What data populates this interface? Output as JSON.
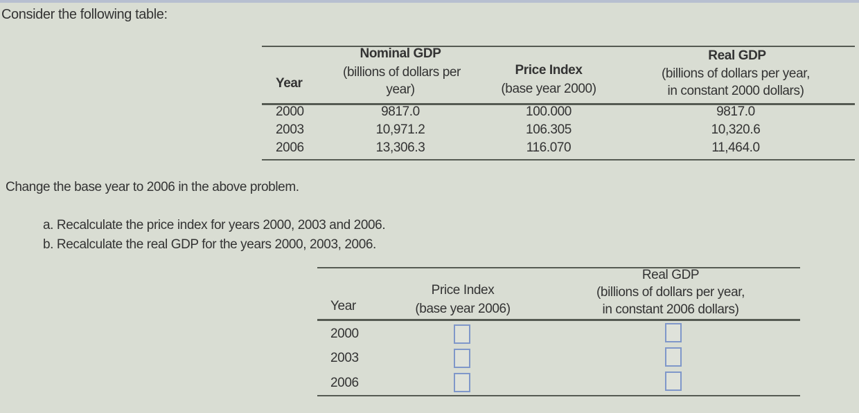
{
  "intro": "Consider the following table:",
  "table1": {
    "headers": {
      "year": "Year",
      "nominal": [
        "Nominal GDP",
        "(billions of dollars per",
        "year)"
      ],
      "price": [
        "Price Index",
        "(base year 2000)"
      ],
      "real": [
        "Real GDP",
        "(billions of dollars per year,",
        "in constant 2000 dollars)"
      ]
    },
    "rows": [
      {
        "year": "2000",
        "nominal": "9817.0",
        "price": "100.000",
        "real": "9817.0"
      },
      {
        "year": "2003",
        "nominal": "10,971.2",
        "price": "106.305",
        "real": "10,320.6"
      },
      {
        "year": "2006",
        "nominal": "13,306.3",
        "price": "116.070",
        "real": "11,464.0"
      }
    ]
  },
  "instruction": "Change the base year to 2006 in the above problem.",
  "parts": [
    "a. Recalculate the price index for years 2000, 2003 and 2006.",
    "b. Recalculate the real GDP for the years 2000, 2003, 2006."
  ],
  "table2": {
    "headers": {
      "year": "Year",
      "price": [
        "Price Index",
        "(base year 2006)"
      ],
      "real": [
        "Real GDP",
        "(billions of dollars per year,",
        "in constant 2006 dollars)"
      ]
    },
    "rows": [
      {
        "year": "2000",
        "price": "",
        "real": ""
      },
      {
        "year": "2003",
        "price": "",
        "real": ""
      },
      {
        "year": "2006",
        "price": "",
        "real": ""
      }
    ]
  }
}
